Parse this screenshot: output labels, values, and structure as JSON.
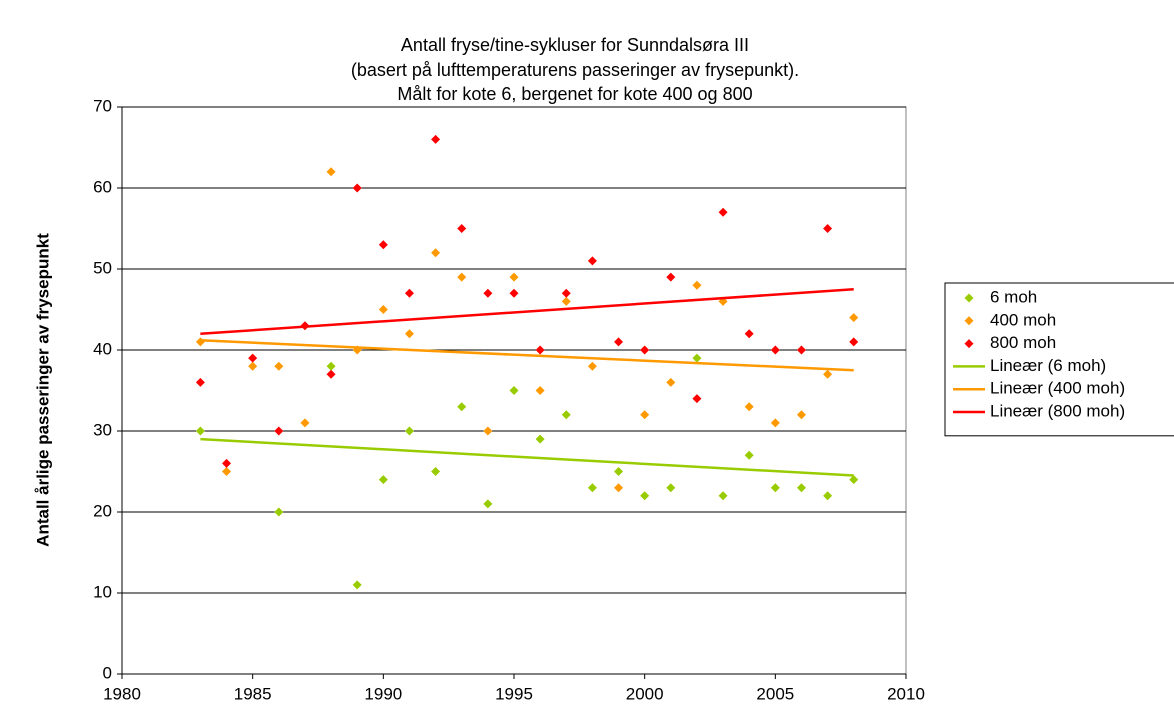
{
  "chart_data": {
    "type": "scatter",
    "title": [
      "Antall fryse/tine-sykluser for Sunndalsøra III",
      "(basert på lufttemperaturens passeringer av frysepunkt).",
      "Målt for kote 6, bergenet for kote 400 og 800"
    ],
    "y_label": "Antall årlige passeringer av frysepunkt",
    "xlim": [
      1980,
      2010
    ],
    "xticks": [
      1980,
      1985,
      1990,
      1995,
      2000,
      2005,
      2010
    ],
    "ylim": [
      0,
      70
    ],
    "yticks": [
      0,
      10,
      20,
      30,
      40,
      50,
      60,
      70
    ],
    "grid": true,
    "legend": "right",
    "series": [
      {
        "name": "6 moh",
        "color": "#99cc00",
        "style": "markers",
        "x": [
          1983,
          1986,
          1988,
          1989,
          1990,
          1991,
          1992,
          1993,
          1994,
          1995,
          1996,
          1997,
          1998,
          1999,
          2000,
          2001,
          2002,
          2003,
          2004,
          2005,
          2006,
          2007,
          2008
        ],
        "values": [
          30,
          20,
          38,
          11,
          24,
          30,
          25,
          33,
          21,
          35,
          29,
          32,
          23,
          25,
          22,
          23,
          39,
          22,
          27,
          23,
          23,
          22,
          24
        ]
      },
      {
        "name": "400 moh",
        "color": "#ff9900",
        "style": "markers",
        "x": [
          1983,
          1984,
          1985,
          1986,
          1987,
          1988,
          1989,
          1990,
          1991,
          1992,
          1993,
          1994,
          1995,
          1996,
          1997,
          1998,
          1999,
          2000,
          2001,
          2002,
          2003,
          2004,
          2005,
          2006,
          2007,
          2008
        ],
        "values": [
          41,
          25,
          38,
          38,
          31,
          62,
          40,
          45,
          42,
          52,
          49,
          30,
          49,
          35,
          46,
          38,
          23,
          32,
          36,
          48,
          46,
          33,
          31,
          32,
          37,
          44
        ]
      },
      {
        "name": "800 moh",
        "color": "#ff0000",
        "style": "markers",
        "x": [
          1983,
          1984,
          1985,
          1986,
          1987,
          1988,
          1989,
          1990,
          1991,
          1992,
          1993,
          1994,
          1995,
          1996,
          1997,
          1998,
          1999,
          2000,
          2001,
          2002,
          2003,
          2004,
          2005,
          2006,
          2007,
          2008
        ],
        "values": [
          36,
          26,
          39,
          30,
          43,
          37,
          60,
          53,
          47,
          66,
          55,
          47,
          47,
          40,
          47,
          51,
          41,
          40,
          49,
          34,
          57,
          42,
          40,
          40,
          55,
          41
        ]
      },
      {
        "name": "Lineær (6 moh)",
        "color": "#99cc00",
        "style": "line",
        "x": [
          1983,
          2008
        ],
        "values": [
          29,
          24.5
        ]
      },
      {
        "name": "Lineær (400 moh)",
        "color": "#ff9900",
        "style": "line",
        "x": [
          1983,
          2008
        ],
        "values": [
          41.2,
          37.5
        ]
      },
      {
        "name": "Lineær (800 moh)",
        "color": "#ff0000",
        "style": "line",
        "x": [
          1983,
          2008
        ],
        "values": [
          42,
          47.5
        ]
      }
    ]
  }
}
